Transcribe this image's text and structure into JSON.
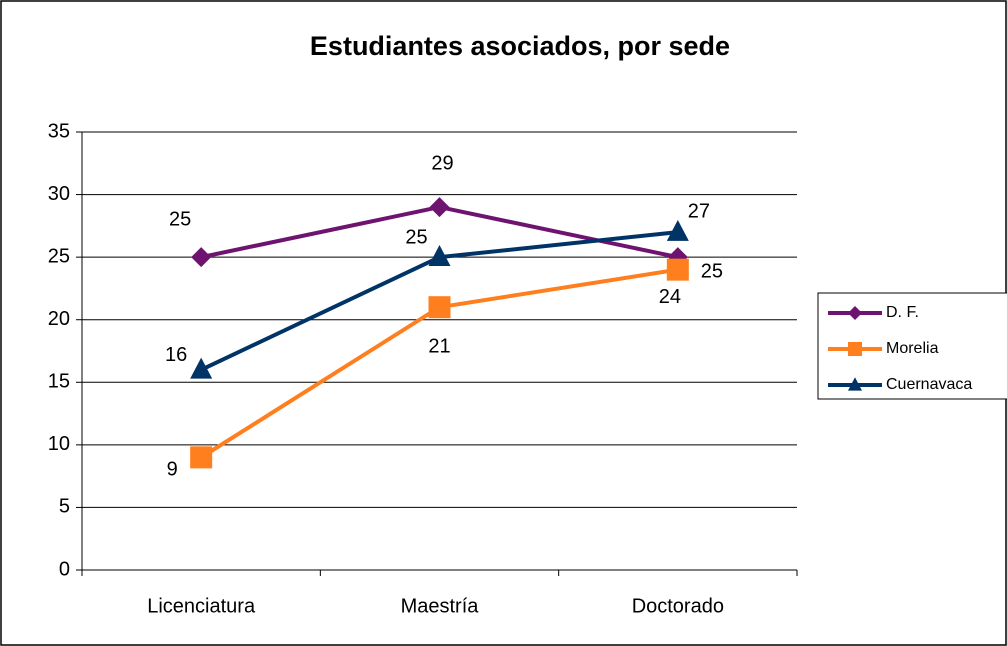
{
  "chart_data": {
    "type": "line",
    "title": "Estudiantes asociados, por sede",
    "categories": [
      "Licenciatura",
      "Maestría",
      "Doctorado"
    ],
    "series": [
      {
        "name": "D. F.",
        "color": "#6e1470",
        "marker": "diamond",
        "values": [
          25,
          29,
          25
        ]
      },
      {
        "name": "Morelia",
        "color": "#ff7f1e",
        "marker": "square",
        "values": [
          9,
          21,
          24
        ]
      },
      {
        "name": "Cuernavaca",
        "color": "#003366",
        "marker": "triangle",
        "values": [
          16,
          25,
          27
        ]
      }
    ],
    "ylim": [
      0,
      35
    ],
    "yticks": [
      0,
      5,
      10,
      15,
      20,
      25,
      30,
      35
    ],
    "grid": true,
    "legend": "right"
  }
}
